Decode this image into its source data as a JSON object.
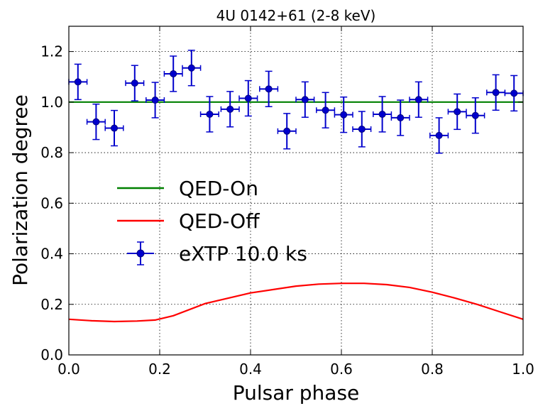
{
  "chart_data": {
    "type": "scatter",
    "title": "4U 0142+61 (2-8 keV)",
    "xlabel": "Pulsar phase",
    "ylabel": "Polarization degree",
    "xlim": [
      0.0,
      1.0
    ],
    "ylim": [
      0.0,
      1.3
    ],
    "xticks": [
      "0.0",
      "0.2",
      "0.4",
      "0.6",
      "0.8",
      "1.0"
    ],
    "yticks": [
      "0.0",
      "0.2",
      "0.4",
      "0.6",
      "0.8",
      "1.0",
      "1.2"
    ],
    "grid": true,
    "legend_position": "center-left",
    "series": [
      {
        "name": "QED-On",
        "kind": "line",
        "color": "#008000",
        "x": [
          0.0,
          1.0
        ],
        "y": [
          1.0,
          1.0
        ]
      },
      {
        "name": "QED-Off",
        "kind": "line",
        "color": "#ff0000",
        "x": [
          0.0,
          0.05,
          0.1,
          0.15,
          0.19,
          0.23,
          0.3,
          0.4,
          0.5,
          0.55,
          0.6,
          0.65,
          0.7,
          0.75,
          0.8,
          0.85,
          0.9,
          0.95,
          1.0
        ],
        "y": [
          0.141,
          0.135,
          0.132,
          0.134,
          0.138,
          0.155,
          0.203,
          0.245,
          0.272,
          0.28,
          0.283,
          0.283,
          0.278,
          0.267,
          0.248,
          0.225,
          0.199,
          0.17,
          0.141
        ]
      },
      {
        "name": "eXTP 10.0 ks",
        "kind": "errorbar",
        "color": "#0000cc",
        "x": [
          0.02,
          0.06,
          0.1,
          0.145,
          0.19,
          0.23,
          0.27,
          0.31,
          0.355,
          0.395,
          0.44,
          0.48,
          0.52,
          0.565,
          0.605,
          0.645,
          0.69,
          0.73,
          0.77,
          0.815,
          0.855,
          0.895,
          0.94,
          0.98
        ],
        "y": [
          1.08,
          0.922,
          0.897,
          1.075,
          1.008,
          1.112,
          1.135,
          0.952,
          0.972,
          1.015,
          1.052,
          0.885,
          1.01,
          0.968,
          0.95,
          0.893,
          0.952,
          0.938,
          1.01,
          0.868,
          0.962,
          0.947,
          1.038,
          1.035
        ],
        "xerr": 0.02,
        "yerr": 0.07
      }
    ]
  }
}
